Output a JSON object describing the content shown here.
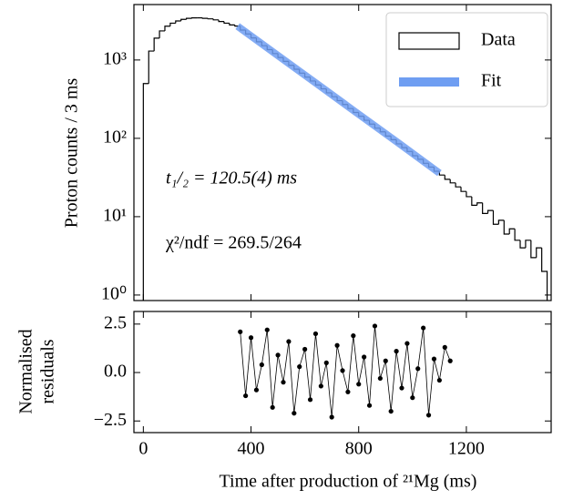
{
  "chart_data": [
    {
      "type": "histogram",
      "ylabel": "Proton counts / 3 ms",
      "yscale": "log",
      "xlim": [
        -35,
        1515
      ],
      "ylim": [
        0.85,
        5100
      ],
      "yticks": [
        {
          "value": 1,
          "label": "10⁰"
        },
        {
          "value": 10,
          "label": "10¹"
        },
        {
          "value": 100,
          "label": "10²"
        },
        {
          "value": 1000,
          "label": "10³"
        }
      ],
      "legend": "upper right",
      "annotations": [
        "t₁/₂ = 120.5(4) ms",
        "χ²/ndf = 269.5/264"
      ],
      "series": [
        {
          "name": "Data",
          "type": "histogram",
          "color": "#000000",
          "bins": [
            0,
            20,
            40,
            60,
            80,
            100,
            120,
            140,
            160,
            180,
            200,
            220,
            240,
            260,
            280,
            300,
            320,
            340,
            360,
            380,
            400,
            420,
            440,
            460,
            480,
            500,
            520,
            540,
            560,
            580,
            600,
            620,
            640,
            660,
            680,
            700,
            720,
            740,
            760,
            780,
            800,
            820,
            840,
            860,
            880,
            900,
            920,
            940,
            960,
            980,
            1000,
            1020,
            1040,
            1060,
            1080,
            1100,
            1120,
            1140,
            1160,
            1180,
            1200,
            1220,
            1240,
            1260,
            1280,
            1300,
            1320,
            1340,
            1360,
            1380,
            1400,
            1420,
            1440,
            1460,
            1480,
            1500
          ],
          "values": [
            500,
            1300,
            1900,
            2350,
            2700,
            2950,
            3150,
            3300,
            3400,
            3450,
            3450,
            3400,
            3350,
            3250,
            3100,
            2950,
            2800,
            2710,
            2410,
            2150,
            1915,
            1707,
            1521,
            1355,
            1208,
            1077,
            960,
            855,
            762,
            679,
            605,
            539,
            480,
            428,
            381,
            340,
            303,
            270,
            240,
            214,
            191,
            170,
            152,
            135,
            121,
            107,
            96,
            85,
            76,
            68,
            60,
            54,
            48,
            43,
            38,
            34,
            30,
            27,
            24,
            21,
            18,
            14,
            15,
            11,
            12,
            8,
            9,
            6,
            7,
            5,
            4,
            5,
            3,
            4,
            2
          ]
        },
        {
          "name": "Fit",
          "type": "line",
          "color": "#6f9ef2",
          "x": [
            350,
            500,
            650,
            800,
            950,
            1100
          ],
          "values": [
            2700,
            1140,
            482,
            203,
            86,
            36
          ]
        }
      ]
    },
    {
      "type": "scatter",
      "xlabel": "Time after production of ²¹Mg (ms)",
      "ylabel": [
        "Normalised",
        "residuals"
      ],
      "xlim": [
        -35,
        1515
      ],
      "ylim": [
        -3.1,
        3.15
      ],
      "xticks": [
        0,
        400,
        800,
        1200
      ],
      "yticks": [
        {
          "value": -2.5,
          "label": "−2.5"
        },
        {
          "value": 0,
          "label": "0.0"
        },
        2.5
      ],
      "series": [
        {
          "color": "#000000",
          "x": [
            360,
            380,
            400,
            420,
            440,
            460,
            480,
            500,
            520,
            540,
            560,
            580,
            600,
            620,
            640,
            660,
            680,
            700,
            720,
            740,
            760,
            780,
            800,
            820,
            840,
            860,
            880,
            900,
            920,
            940,
            960,
            980,
            1000,
            1020,
            1040,
            1060,
            1080,
            1100,
            1120,
            1140
          ],
          "values": [
            2.1,
            -1.2,
            1.8,
            -0.9,
            0.4,
            2.2,
            -1.8,
            0.9,
            -0.5,
            1.6,
            -2.1,
            0.3,
            1.2,
            -1.4,
            2.0,
            -0.7,
            0.5,
            -2.3,
            1.4,
            0.1,
            -1.0,
            1.9,
            -0.6,
            0.8,
            -1.7,
            2.4,
            -0.3,
            0.6,
            -2.0,
            1.1,
            -0.8,
            1.5,
            -1.3,
            0.2,
            2.3,
            -2.2,
            0.7,
            -0.4,
            1.3,
            0.6
          ]
        }
      ]
    }
  ]
}
